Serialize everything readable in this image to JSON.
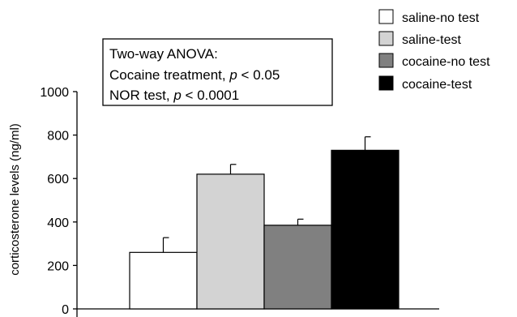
{
  "chart_data": {
    "type": "bar",
    "title": "",
    "xlabel": "",
    "ylabel": "corticosterone levels (ng/ml)",
    "ylim": [
      0,
      1000
    ],
    "yticks": [
      0,
      200,
      400,
      600,
      800,
      1000
    ],
    "grid": false,
    "legend_position": "top-right",
    "series": [
      {
        "name": "saline-no test",
        "value": 260,
        "error": 68,
        "color": "#ffffff"
      },
      {
        "name": "saline-test",
        "value": 620,
        "error": 45,
        "color": "#d3d3d3"
      },
      {
        "name": "cocaine-no test",
        "value": 385,
        "error": 28,
        "color": "#808080"
      },
      {
        "name": "cocaine-test",
        "value": 730,
        "error": 62,
        "color": "#000000"
      }
    ],
    "annotation": {
      "line1": "Two-way ANOVA:",
      "line2_prefix": "Cocaine treatment, ",
      "line2_italic": "p",
      "line2_suffix": " < 0.05",
      "line3_prefix": "NOR test, ",
      "line3_italic": "p",
      "line3_suffix": " < 0.0001"
    }
  }
}
